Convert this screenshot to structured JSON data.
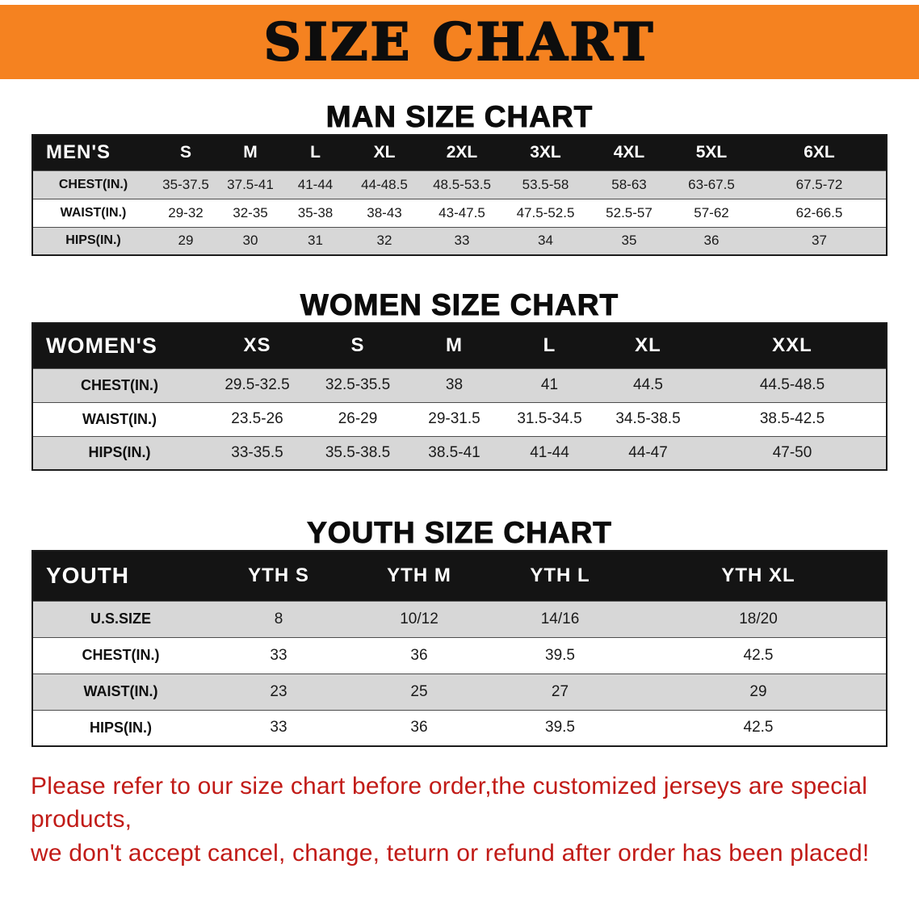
{
  "banner": {
    "title": "SIZE CHART",
    "bg_color": "#f58220",
    "text_color": "#0d0d0d"
  },
  "colors": {
    "header_bar": "#141414",
    "row_alt": "#d7d7d7",
    "row_base": "#ffffff",
    "disclaimer_red": "#c11b17"
  },
  "sections": [
    {
      "id": "men",
      "heading": "MAN SIZE CHART",
      "table": {
        "header": [
          "MEN'S",
          "S",
          "M",
          "L",
          "XL",
          "2XL",
          "3XL",
          "4XL",
          "5XL",
          "6XL"
        ],
        "rows": [
          {
            "label": "CHEST(IN.)",
            "values": [
              "35-37.5",
              "37.5-41",
              "41-44",
              "44-48.5",
              "48.5-53.5",
              "53.5-58",
              "58-63",
              "63-67.5",
              "67.5-72"
            ]
          },
          {
            "label": "WAIST(IN.)",
            "values": [
              "29-32",
              "32-35",
              "35-38",
              "38-43",
              "43-47.5",
              "47.5-52.5",
              "52.5-57",
              "57-62",
              "62-66.5"
            ]
          },
          {
            "label": "HIPS(IN.)",
            "values": [
              "29",
              "30",
              "31",
              "32",
              "33",
              "34",
              "35",
              "36",
              "37"
            ]
          }
        ]
      }
    },
    {
      "id": "women",
      "heading": "WOMEN SIZE CHART",
      "table": {
        "header": [
          "WOMEN'S",
          "XS",
          "S",
          "M",
          "L",
          "XL",
          "XXL"
        ],
        "rows": [
          {
            "label": "CHEST(IN.)",
            "values": [
              "29.5-32.5",
              "32.5-35.5",
              "38",
              "41",
              "44.5",
              "44.5-48.5"
            ]
          },
          {
            "label": "WAIST(IN.)",
            "values": [
              "23.5-26",
              "26-29",
              "29-31.5",
              "31.5-34.5",
              "34.5-38.5",
              "38.5-42.5"
            ]
          },
          {
            "label": "HIPS(IN.)",
            "values": [
              "33-35.5",
              "35.5-38.5",
              "38.5-41",
              "41-44",
              "44-47",
              "47-50"
            ]
          }
        ]
      }
    },
    {
      "id": "youth",
      "heading": "YOUTH SIZE CHART",
      "table": {
        "header": [
          "YOUTH",
          "YTH S",
          "YTH M",
          "YTH L",
          "YTH XL"
        ],
        "rows": [
          {
            "label": "U.S.SIZE",
            "values": [
              "8",
              "10/12",
              "14/16",
              "18/20"
            ]
          },
          {
            "label": "CHEST(IN.)",
            "values": [
              "33",
              "36",
              "39.5",
              "42.5"
            ]
          },
          {
            "label": "WAIST(IN.)",
            "values": [
              "23",
              "25",
              "27",
              "29"
            ]
          },
          {
            "label": "HIPS(IN.)",
            "values": [
              "33",
              "36",
              "39.5",
              "42.5"
            ]
          }
        ]
      }
    }
  ],
  "disclaimer": {
    "line1": "Please refer to our size chart before order,the customized jerseys are special products,",
    "line2": "we don't accept cancel, change, teturn or refund after order has been placed!",
    "color": "#c11b17"
  }
}
